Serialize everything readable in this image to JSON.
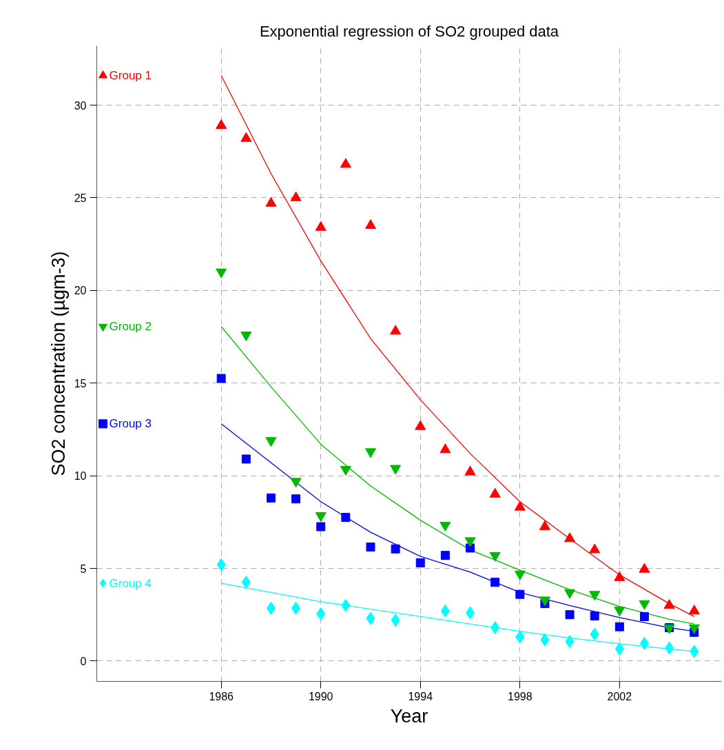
{
  "chart_data": {
    "type": "scatter",
    "title": "Exponential regression of SO2 grouped data",
    "xlabel": "Year",
    "ylabel": "SO2 concentration (µgm-3)",
    "x": [
      1986,
      1987,
      1988,
      1989,
      1990,
      1991,
      1992,
      1993,
      1994,
      1995,
      1996,
      1997,
      1998,
      1999,
      2000,
      2001,
      2002,
      2003,
      2004,
      2005
    ],
    "series": [
      {
        "name": "Group 1",
        "marker": "triangle",
        "color": "#ff0000",
        "values": [
          28.9,
          28.2,
          24.7,
          25.0,
          23.4,
          26.8,
          23.5,
          17.8,
          12.65,
          11.4,
          10.2,
          9.0,
          8.3,
          7.25,
          6.6,
          6.0,
          4.5,
          4.95,
          3.0,
          2.7
        ]
      },
      {
        "name": "Group 2",
        "marker": "triangle",
        "color": "#00b800",
        "values": [
          21.0,
          17.6,
          11.9,
          9.7,
          7.85,
          10.35,
          11.3,
          10.4,
          null,
          7.33,
          6.5,
          5.7,
          4.7,
          3.3,
          3.7,
          3.6,
          2.75,
          3.1,
          1.8,
          1.8
        ]
      },
      {
        "name": "Group 3",
        "marker": "square",
        "color": "#0000ff",
        "values": [
          15.25,
          10.9,
          8.8,
          8.75,
          7.25,
          7.75,
          6.15,
          6.05,
          5.3,
          5.7,
          6.1,
          4.25,
          3.6,
          3.1,
          2.5,
          2.43,
          1.85,
          2.4,
          1.8,
          1.55
        ]
      },
      {
        "name": "Group 4",
        "marker": "diamond",
        "color": "#00ffff",
        "values": [
          5.2,
          4.25,
          2.85,
          2.85,
          2.55,
          3.0,
          2.3,
          2.2,
          null,
          2.7,
          2.6,
          1.8,
          1.3,
          1.15,
          1.05,
          1.45,
          0.65,
          0.95,
          0.7,
          0.52
        ]
      },
      {
        "type": "line",
        "color": "#ff0000",
        "x": [
          1986,
          1988,
          1990,
          1992,
          1994,
          1996,
          1998,
          2000,
          2002,
          2004,
          2005
        ],
        "values": [
          31.6,
          26.3,
          21.6,
          17.4,
          14.1,
          11.2,
          8.6,
          6.6,
          4.65,
          3.1,
          2.4
        ]
      },
      {
        "type": "line",
        "color": "#00b800",
        "x": [
          1986,
          1988,
          1990,
          1992,
          1994,
          1996,
          1998,
          2000,
          2002,
          2004,
          2005
        ],
        "values": [
          18.05,
          14.8,
          11.7,
          9.45,
          7.6,
          6.0,
          4.9,
          3.85,
          2.95,
          2.25,
          2.0
        ]
      },
      {
        "type": "line",
        "color": "#0000ff",
        "x": [
          1986,
          1988,
          1990,
          1992,
          1994,
          1996,
          1998,
          2000,
          2002,
          2004,
          2005
        ],
        "values": [
          12.8,
          10.7,
          8.6,
          6.95,
          5.65,
          4.8,
          3.7,
          3.0,
          2.35,
          1.8,
          1.6
        ]
      },
      {
        "type": "line",
        "color": "#00ffff",
        "x": [
          1986,
          1988,
          1990,
          1992,
          1994,
          1996,
          1998,
          2000,
          2002,
          2004,
          2005
        ],
        "values": [
          4.2,
          3.7,
          3.2,
          2.8,
          2.4,
          2.0,
          1.6,
          1.25,
          0.93,
          0.65,
          0.52
        ]
      }
    ],
    "xlim": [
      1981,
      2006.1
    ],
    "ylim": [
      -1.1,
      33.2
    ],
    "xticks": [
      1986,
      1990,
      1994,
      1998,
      2002
    ],
    "yticks": [
      0,
      5,
      10,
      15,
      20,
      25,
      30
    ],
    "grid": true,
    "legend": "left"
  }
}
